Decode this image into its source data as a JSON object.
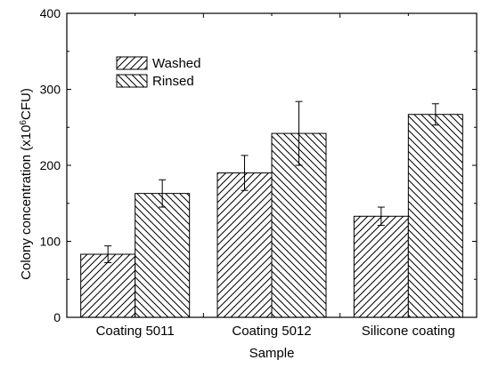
{
  "chart_data": {
    "type": "bar",
    "title": "",
    "xlabel": "Sample",
    "ylabel_prefix": "Colony concentration (x10",
    "ylabel_sup": "6",
    "ylabel_suffix": "CFU)",
    "ylim": [
      0,
      400
    ],
    "yticks": [
      0,
      100,
      200,
      300,
      400
    ],
    "categories": [
      "Coating 5011",
      "Coating 5012",
      "Silicone coating"
    ],
    "series": [
      {
        "name": "Washed",
        "values": [
          83,
          190,
          133
        ],
        "errors": [
          11,
          23,
          12
        ],
        "hatch": "forward"
      },
      {
        "name": "Rinsed",
        "values": [
          163,
          242,
          267
        ],
        "errors": [
          18,
          42,
          14
        ],
        "hatch": "back"
      }
    ],
    "legend_position": "top-left",
    "grid": false
  }
}
